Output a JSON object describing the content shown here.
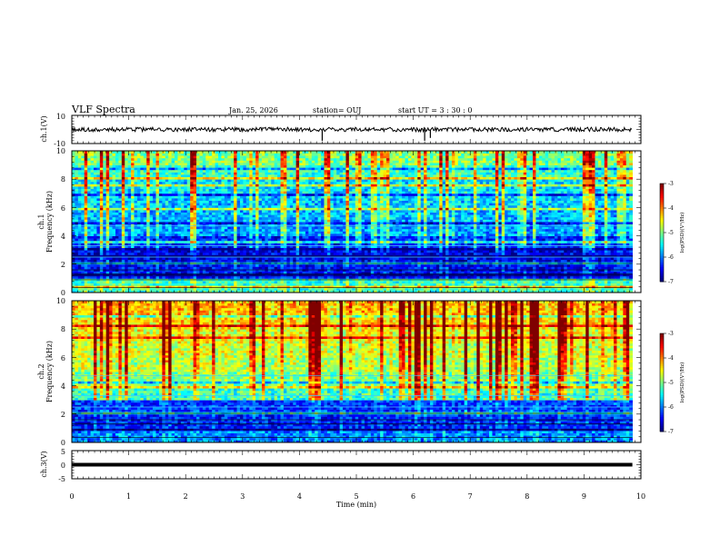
{
  "header": {
    "title": "VLF Spectra",
    "date": "Jan. 25, 2026",
    "station": "station= OUJ",
    "start": "start  UT =   3 : 30 : 0"
  },
  "chart_data": [
    {
      "type": "line",
      "panel": "ch1-waveform",
      "ylabel": "ch.1(V)",
      "ylim": [
        -10,
        10
      ],
      "yticks": [
        "10",
        "-10"
      ],
      "xlim": [
        0,
        10
      ],
      "baseline": 0,
      "amplitude": 1.5,
      "spikes": [
        {
          "x": 4.4,
          "y": -8
        },
        {
          "x": 6.2,
          "y": -8
        },
        {
          "x": 6.3,
          "y": -6
        }
      ]
    },
    {
      "type": "heatmap",
      "panel": "ch1-spectrogram",
      "ylabel": "ch.1",
      "ylabel2": "Frequency (kHz)",
      "ylim": [
        0,
        10
      ],
      "yticks": [
        "0",
        "2",
        "4",
        "6",
        "8",
        "10"
      ],
      "xlim": [
        0,
        10
      ],
      "zlim": [
        -7,
        -3
      ],
      "colorbar_label": "log(PSD)(V²/Hz)",
      "colorbar_ticks": [
        "-3",
        "-4",
        "-5",
        "-6",
        "-7"
      ],
      "band_levels_by_khz": [
        -5.3,
        -6.5,
        -6.6,
        -6.4,
        -5.9,
        -5.8,
        -5.7,
        -5.6,
        -5.3,
        -5.0
      ]
    },
    {
      "type": "heatmap",
      "panel": "ch2-spectrogram",
      "ylabel": "ch.2",
      "ylabel2": "Frequency (kHz)",
      "ylim": [
        0,
        10
      ],
      "yticks": [
        "0",
        "2",
        "4",
        "6",
        "8",
        "10"
      ],
      "xlim": [
        0,
        10
      ],
      "zlim": [
        -7,
        -3
      ],
      "colorbar_label": "log(PSD)(V²/Hz)",
      "colorbar_ticks": [
        "-3",
        "-4",
        "-5",
        "-6",
        "-7"
      ],
      "band_levels_by_khz": [
        -6.0,
        -6.4,
        -6.3,
        -5.3,
        -5.0,
        -4.8,
        -4.7,
        -4.6,
        -4.4,
        -4.3
      ]
    },
    {
      "type": "line",
      "panel": "ch3-waveform",
      "ylabel": "ch.3(V)",
      "ylim": [
        -5,
        5
      ],
      "yticks": [
        "5",
        "0",
        "-5"
      ],
      "xlim": [
        0,
        10
      ],
      "baseline": 0,
      "amplitude": 0.1
    }
  ],
  "xaxis": {
    "label": "Time (min)",
    "ticks": [
      "0",
      "1",
      "2",
      "3",
      "4",
      "5",
      "6",
      "7",
      "8",
      "9",
      "10"
    ]
  }
}
